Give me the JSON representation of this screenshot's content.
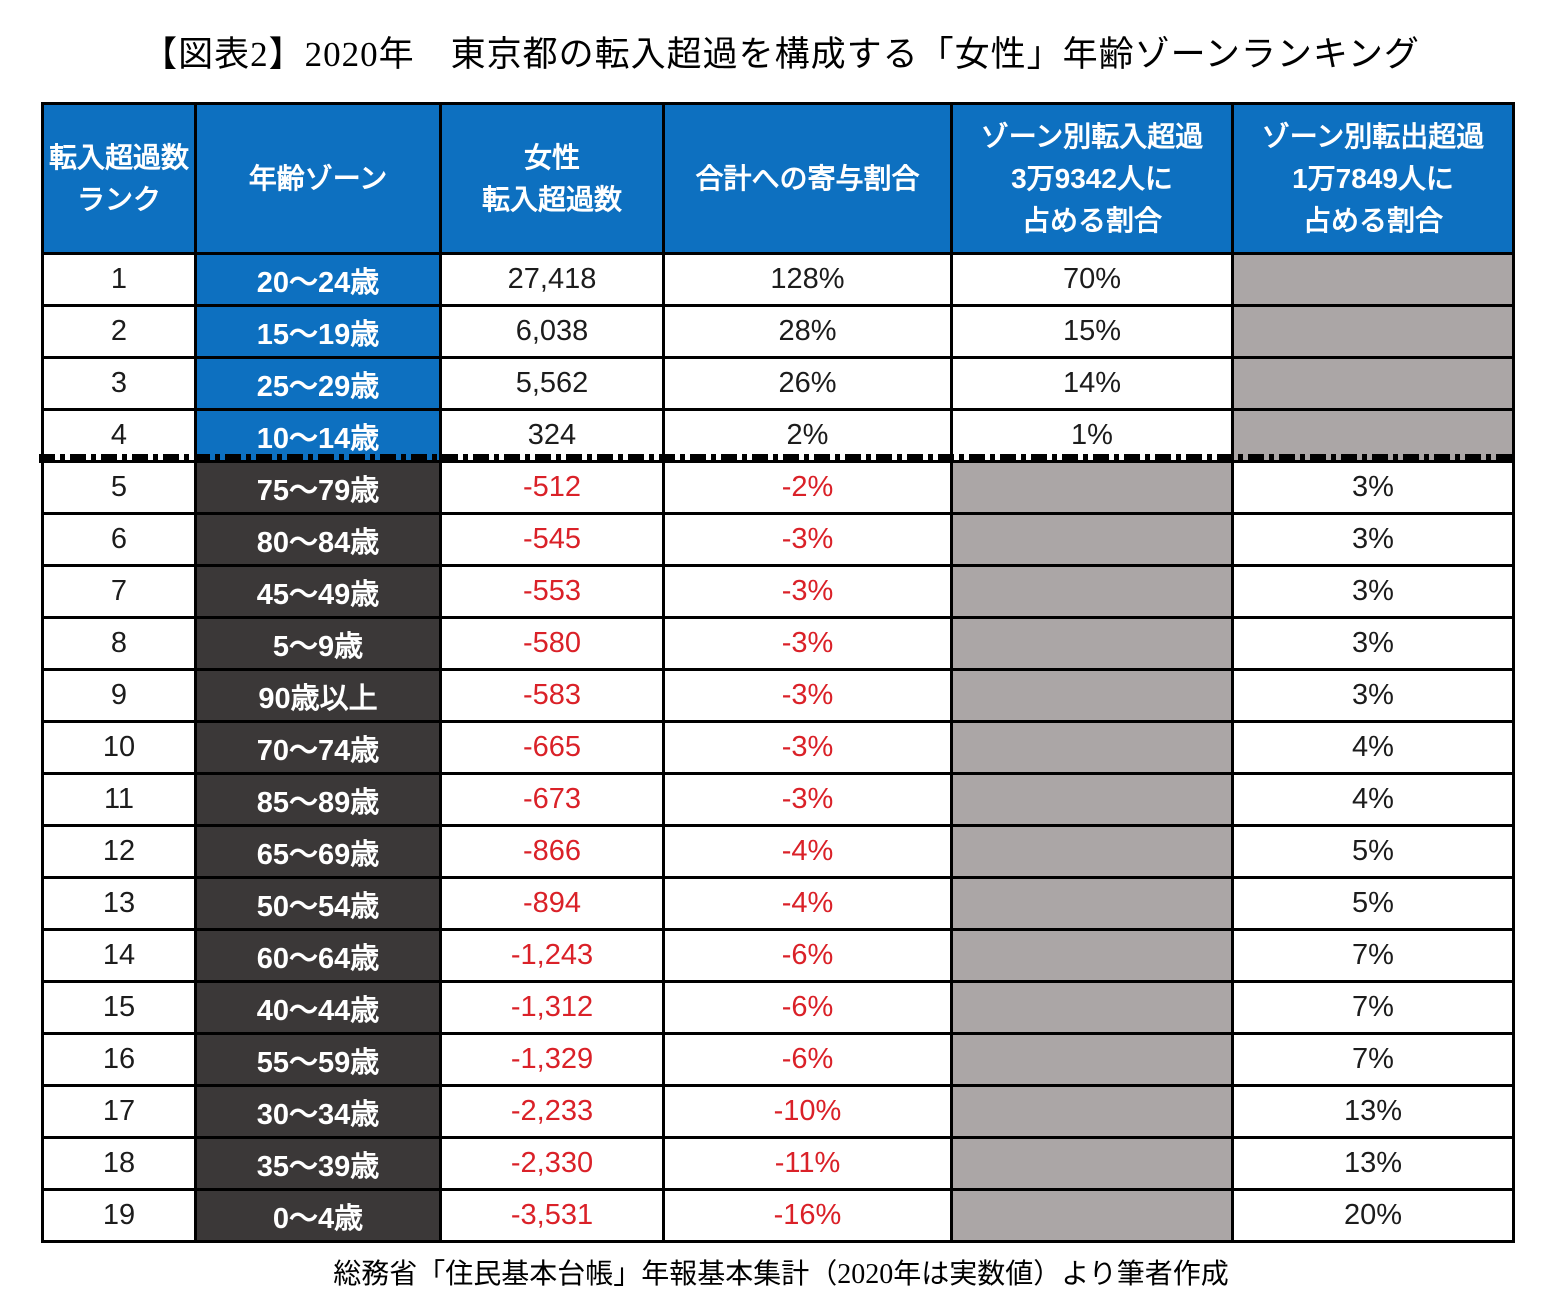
{
  "title": "【図表2】2020年　東京都の転入超過を構成する「女性」年齢ゾーンランキング",
  "source_note": "総務省「住民基本台帳」年報基本集計（2020年は実数値）より筆者作成",
  "colors": {
    "header_bg": "#0D70C0",
    "inflow_zone_bg": "#0D70C0",
    "outflow_zone_bg": "#3B3838",
    "masked_cell_bg": "#ABA6A6",
    "negative_text": "#DA2128",
    "border": "#000000"
  },
  "chart_data": {
    "type": "table",
    "title": "【図表2】2020年　東京都の転入超過を構成する「女性」年齢ゾーンランキング",
    "columns": [
      {
        "id": "rank",
        "label_lines": [
          "転入超過数",
          "ランク"
        ]
      },
      {
        "id": "age_zone",
        "label_lines": [
          "年齢ゾーン"
        ]
      },
      {
        "id": "net",
        "label_lines": [
          "女性",
          "転入超過数"
        ]
      },
      {
        "id": "contribution",
        "label_lines": [
          "合計への寄与割合"
        ]
      },
      {
        "id": "in_share",
        "label_lines": [
          "ゾーン別転入超過",
          "3万9342人に",
          "占める割合"
        ]
      },
      {
        "id": "out_share",
        "label_lines": [
          "ゾーン別転出超過",
          "1万7849人に",
          "占める割合"
        ]
      }
    ],
    "rows": [
      {
        "rank": "1",
        "age_zone": "20～24歳",
        "net": "27,418",
        "contribution": "128%",
        "in_share": "70%",
        "out_share": null
      },
      {
        "rank": "2",
        "age_zone": "15～19歳",
        "net": "6,038",
        "contribution": "28%",
        "in_share": "15%",
        "out_share": null
      },
      {
        "rank": "3",
        "age_zone": "25～29歳",
        "net": "5,562",
        "contribution": "26%",
        "in_share": "14%",
        "out_share": null
      },
      {
        "rank": "4",
        "age_zone": "10～14歳",
        "net": "324",
        "contribution": "2%",
        "in_share": "1%",
        "out_share": null
      },
      {
        "rank": "5",
        "age_zone": "75～79歳",
        "net": "-512",
        "contribution": "-2%",
        "in_share": null,
        "out_share": "3%"
      },
      {
        "rank": "6",
        "age_zone": "80～84歳",
        "net": "-545",
        "contribution": "-3%",
        "in_share": null,
        "out_share": "3%"
      },
      {
        "rank": "7",
        "age_zone": "45～49歳",
        "net": "-553",
        "contribution": "-3%",
        "in_share": null,
        "out_share": "3%"
      },
      {
        "rank": "8",
        "age_zone": "5～9歳",
        "net": "-580",
        "contribution": "-3%",
        "in_share": null,
        "out_share": "3%"
      },
      {
        "rank": "9",
        "age_zone": "90歳以上",
        "net": "-583",
        "contribution": "-3%",
        "in_share": null,
        "out_share": "3%"
      },
      {
        "rank": "10",
        "age_zone": "70～74歳",
        "net": "-665",
        "contribution": "-3%",
        "in_share": null,
        "out_share": "4%"
      },
      {
        "rank": "11",
        "age_zone": "85～89歳",
        "net": "-673",
        "contribution": "-3%",
        "in_share": null,
        "out_share": "4%"
      },
      {
        "rank": "12",
        "age_zone": "65～69歳",
        "net": "-866",
        "contribution": "-4%",
        "in_share": null,
        "out_share": "5%"
      },
      {
        "rank": "13",
        "age_zone": "50～54歳",
        "net": "-894",
        "contribution": "-4%",
        "in_share": null,
        "out_share": "5%"
      },
      {
        "rank": "14",
        "age_zone": "60～64歳",
        "net": "-1,243",
        "contribution": "-6%",
        "in_share": null,
        "out_share": "7%"
      },
      {
        "rank": "15",
        "age_zone": "40～44歳",
        "net": "-1,312",
        "contribution": "-6%",
        "in_share": null,
        "out_share": "7%"
      },
      {
        "rank": "16",
        "age_zone": "55～59歳",
        "net": "-1,329",
        "contribution": "-6%",
        "in_share": null,
        "out_share": "7%"
      },
      {
        "rank": "17",
        "age_zone": "30～34歳",
        "net": "-2,233",
        "contribution": "-10%",
        "in_share": null,
        "out_share": "13%"
      },
      {
        "rank": "18",
        "age_zone": "35～39歳",
        "net": "-2,330",
        "contribution": "-11%",
        "in_share": null,
        "out_share": "13%"
      },
      {
        "rank": "19",
        "age_zone": "0～4歳",
        "net": "-3,531",
        "contribution": "-16%",
        "in_share": null,
        "out_share": "20%"
      }
    ]
  }
}
